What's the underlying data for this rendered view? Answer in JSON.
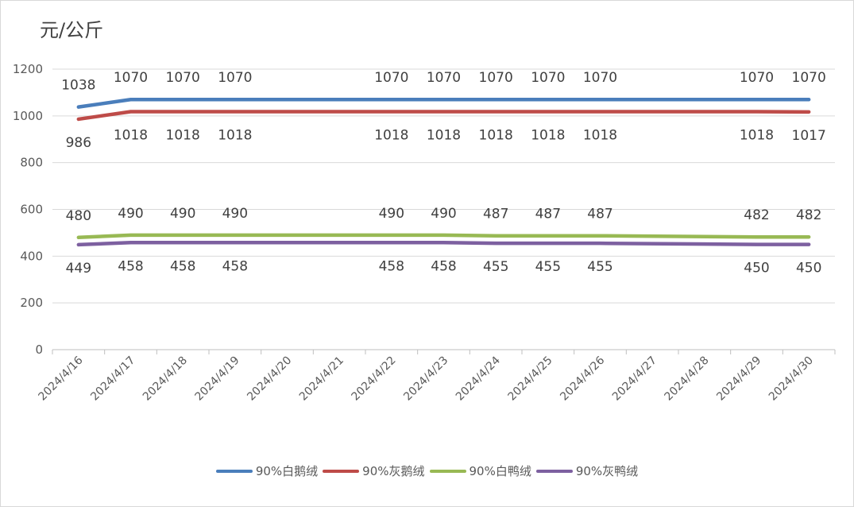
{
  "chart_data": {
    "type": "line",
    "unit_label": "元/公斤",
    "categories": [
      "2024/4/16",
      "2024/4/17",
      "2024/4/18",
      "2024/4/19",
      "2024/4/20",
      "2024/4/21",
      "2024/4/22",
      "2024/4/23",
      "2024/4/24",
      "2024/4/25",
      "2024/4/26",
      "2024/4/27",
      "2024/4/28",
      "2024/4/29",
      "2024/4/30"
    ],
    "ylim": [
      0,
      1200
    ],
    "yticks": [
      0,
      200,
      400,
      600,
      800,
      1000,
      1200
    ],
    "grid": true,
    "legend_position": "bottom",
    "series": [
      {
        "name": "90%白鹅绒",
        "color": "#4a7ebb",
        "label_pos": "above",
        "values": [
          1038,
          1070,
          1070,
          1070,
          null,
          null,
          1070,
          1070,
          1070,
          1070,
          1070,
          null,
          null,
          1070,
          1070
        ]
      },
      {
        "name": "90%灰鹅绒",
        "color": "#be4b48",
        "label_pos": "below",
        "values": [
          986,
          1018,
          1018,
          1018,
          null,
          null,
          1018,
          1018,
          1018,
          1018,
          1018,
          null,
          null,
          1018,
          1017
        ]
      },
      {
        "name": "90%白鸭绒",
        "color": "#98b954",
        "label_pos": "above",
        "values": [
          480,
          490,
          490,
          490,
          null,
          null,
          490,
          490,
          487,
          487,
          487,
          null,
          null,
          482,
          482
        ]
      },
      {
        "name": "90%灰鸭绒",
        "color": "#7d60a0",
        "label_pos": "below",
        "values": [
          449,
          458,
          458,
          458,
          null,
          null,
          458,
          458,
          455,
          455,
          455,
          null,
          null,
          450,
          450
        ]
      }
    ]
  }
}
